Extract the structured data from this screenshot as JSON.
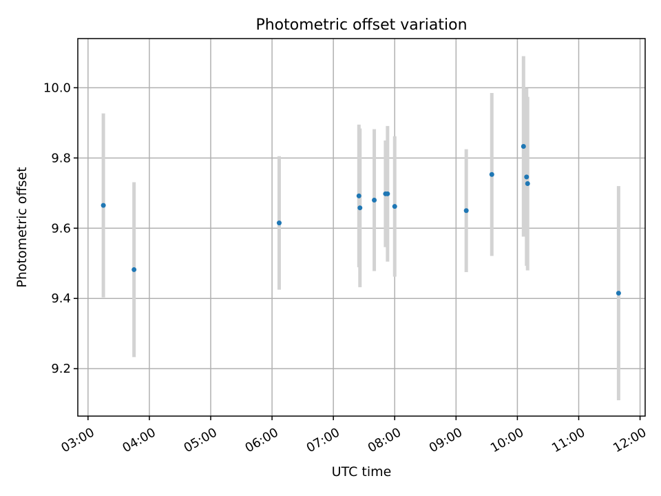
{
  "chart_data": {
    "type": "scatter",
    "title": "Photometric offset variation",
    "xlabel": "UTC time",
    "ylabel": "Photometric offset",
    "x_tick_labels": [
      "03:00",
      "04:00",
      "05:00",
      "06:00",
      "07:00",
      "08:00",
      "09:00",
      "10:00",
      "11:00",
      "12:00"
    ],
    "x_ticks": [
      "03:00",
      "04:00",
      "05:00",
      "06:00",
      "07:00",
      "08:00",
      "09:00",
      "10:00",
      "11:00",
      "12:00"
    ],
    "y_tick_labels": [
      "9.2",
      "9.4",
      "9.6",
      "9.8",
      "10.0"
    ],
    "y_ticks": [
      9.2,
      9.4,
      9.6,
      9.8,
      10.0
    ],
    "xlim": [
      "02:50",
      "12:05"
    ],
    "ylim": [
      9.065,
      10.14
    ],
    "grid": true,
    "marker_color": "#1f77b4",
    "errorbar_color": "#d3d3d3",
    "points": [
      {
        "time": "03:15",
        "y": 9.665,
        "yerr": 0.262
      },
      {
        "time": "03:45",
        "y": 9.482,
        "yerr": 0.249
      },
      {
        "time": "06:07",
        "y": 9.615,
        "yerr": 0.19
      },
      {
        "time": "07:25",
        "y": 9.692,
        "yerr": 0.203
      },
      {
        "time": "07:26",
        "y": 9.658,
        "yerr": 0.226
      },
      {
        "time": "07:40",
        "y": 9.68,
        "yerr": 0.202
      },
      {
        "time": "07:51",
        "y": 9.698,
        "yerr": 0.152
      },
      {
        "time": "07:53",
        "y": 9.698,
        "yerr": 0.193
      },
      {
        "time": "08:00",
        "y": 9.662,
        "yerr": 0.2
      },
      {
        "time": "09:10",
        "y": 9.65,
        "yerr": 0.175
      },
      {
        "time": "09:35",
        "y": 9.753,
        "yerr": 0.232
      },
      {
        "time": "10:06",
        "y": 9.833,
        "yerr": 0.257
      },
      {
        "time": "10:09",
        "y": 9.746,
        "yerr": 0.253
      },
      {
        "time": "10:10",
        "y": 9.727,
        "yerr": 0.247
      },
      {
        "time": "11:39",
        "y": 9.415,
        "yerr": 0.305
      }
    ]
  }
}
